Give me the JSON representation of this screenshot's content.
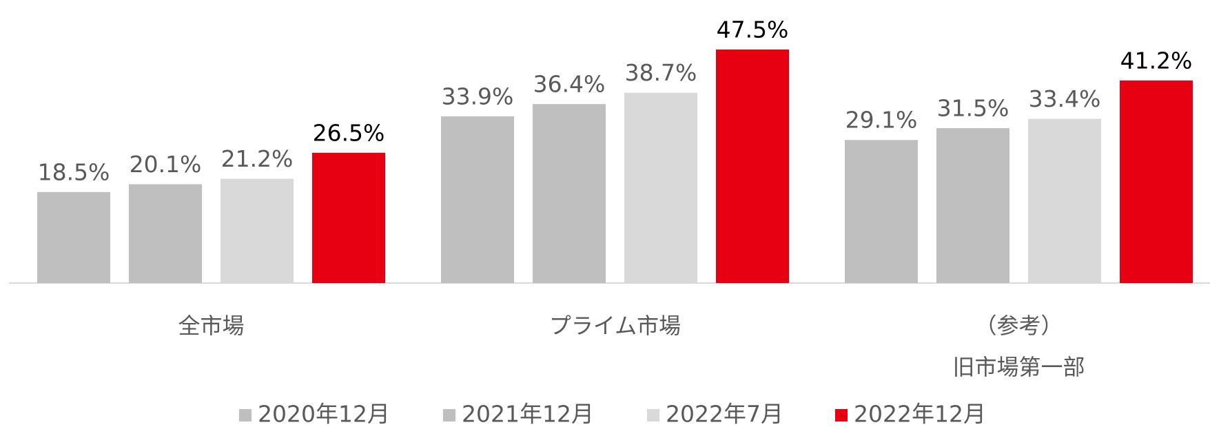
{
  "chart_data": {
    "type": "bar",
    "categories": [
      "全市場",
      "プライム市場",
      "（参考）\n旧市場第一部"
    ],
    "series": [
      {
        "name": "2020年12月",
        "color": "#bfbfbf",
        "label_color": "#595959",
        "values": [
          18.5,
          33.9,
          29.1
        ],
        "value_labels": [
          "18.5%",
          "33.9%",
          "29.1%"
        ]
      },
      {
        "name": "2021年12月",
        "color": "#bfbfbf",
        "label_color": "#595959",
        "values": [
          20.1,
          36.4,
          31.5
        ],
        "value_labels": [
          "20.1%",
          "36.4%",
          "31.5%"
        ]
      },
      {
        "name": "2022年7月",
        "color": "#d9d9d9",
        "label_color": "#595959",
        "values": [
          21.2,
          38.7,
          33.4
        ],
        "value_labels": [
          "21.2%",
          "38.7%",
          "33.4%"
        ]
      },
      {
        "name": "2022年12月",
        "color": "#e60012",
        "label_color": "#000000",
        "values": [
          26.5,
          47.5,
          41.2
        ],
        "value_labels": [
          "26.5%",
          "47.5%",
          "41.2%"
        ]
      }
    ],
    "ylim": [
      0,
      50
    ],
    "legend": "bottom"
  }
}
